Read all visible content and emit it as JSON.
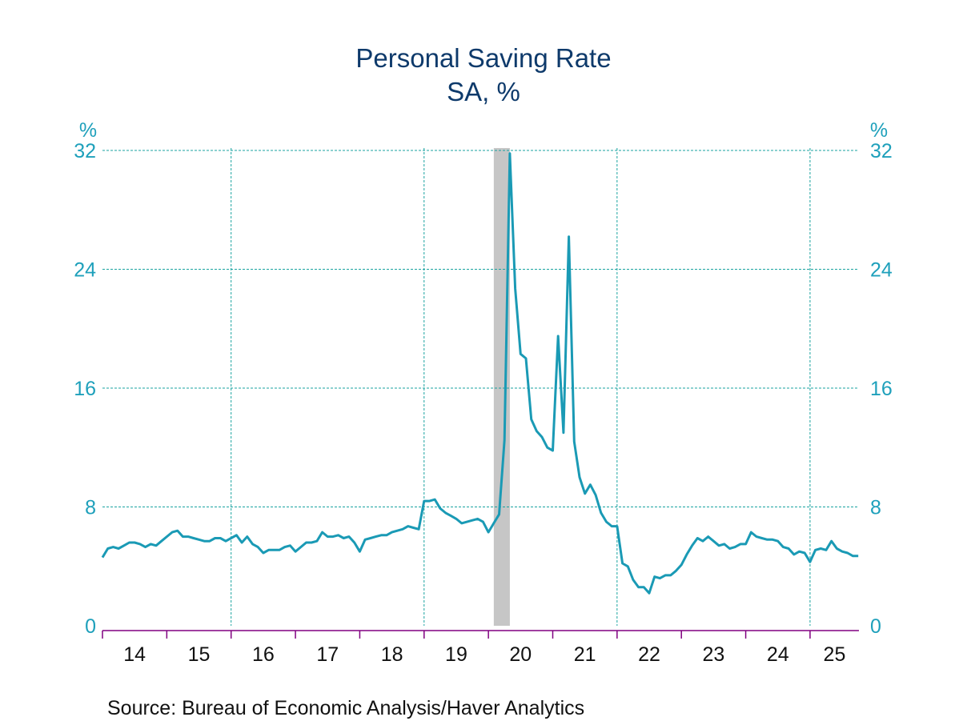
{
  "chart_data": {
    "type": "line",
    "title": "Personal Saving Rate",
    "subtitle": "SA, %",
    "ylabel_left": "%",
    "ylabel_right": "%",
    "ylim": [
      0,
      32
    ],
    "yticks": [
      0,
      8,
      16,
      24,
      32
    ],
    "xlim": [
      2014,
      2025.76
    ],
    "xtick_labels": [
      "14",
      "15",
      "16",
      "17",
      "18",
      "19",
      "20",
      "21",
      "22",
      "23",
      "24",
      "25"
    ],
    "grid": {
      "horizontal": true,
      "vertical_years": [
        2016,
        2019,
        2022,
        2025
      ]
    },
    "recession": {
      "start": "2020-02",
      "end": "2020-04"
    },
    "series": [
      {
        "name": "Personal Saving Rate",
        "color": "#1a9ab5",
        "start": "2013-12",
        "frequency": "monthly",
        "values": [
          4.6,
          5.2,
          5.3,
          5.2,
          5.4,
          5.6,
          5.6,
          5.5,
          5.3,
          5.5,
          5.4,
          5.7,
          6.0,
          6.3,
          6.4,
          6.0,
          6.0,
          5.9,
          5.8,
          5.7,
          5.7,
          5.9,
          5.9,
          5.7,
          5.9,
          6.1,
          5.6,
          6.0,
          5.5,
          5.3,
          4.9,
          5.1,
          5.1,
          5.1,
          5.3,
          5.4,
          5.0,
          5.3,
          5.6,
          5.6,
          5.7,
          6.3,
          6.0,
          6.0,
          6.1,
          5.9,
          6.0,
          5.6,
          5.0,
          5.8,
          5.9,
          6.0,
          6.1,
          6.1,
          6.3,
          6.4,
          6.5,
          6.7,
          6.6,
          6.5,
          8.4,
          8.4,
          8.5,
          7.9,
          7.6,
          7.4,
          7.2,
          6.9,
          7.0,
          7.1,
          7.2,
          7.0,
          6.3,
          6.9,
          7.5,
          12.5,
          31.8,
          22.7,
          18.3,
          18.0,
          13.9,
          13.1,
          12.7,
          12.0,
          11.8,
          19.5,
          13.0,
          26.2,
          12.4,
          10.0,
          8.9,
          9.5,
          8.8,
          7.6,
          7.0,
          6.7,
          6.7,
          4.2,
          4.0,
          3.1,
          2.6,
          2.6,
          2.2,
          3.3,
          3.2,
          3.4,
          3.4,
          3.7,
          4.1,
          4.8,
          5.4,
          5.9,
          5.7,
          6.0,
          5.7,
          5.4,
          5.5,
          5.2,
          5.3,
          5.5,
          5.5,
          6.3,
          6.0,
          5.9,
          5.8,
          5.8,
          5.7,
          5.3,
          5.2,
          4.8,
          5.0,
          4.9,
          4.3,
          5.1,
          5.2,
          5.1,
          5.7,
          5.2,
          5.0,
          4.9,
          4.7,
          4.7
        ]
      }
    ],
    "colors": {
      "title": "#0e3a6b",
      "ytick": "#1ea0bb",
      "grid": "#1aa3a0",
      "axis": "#800080",
      "recession": "#c6c6c6"
    }
  },
  "source": "Source:  Bureau of Economic Analysis/Haver Analytics"
}
